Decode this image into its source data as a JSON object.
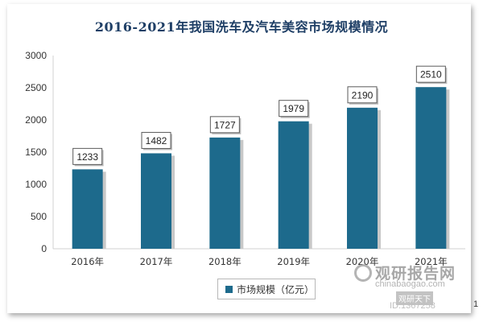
{
  "chart_data": {
    "type": "bar",
    "title": "2016-2021年我国洗车及汽车美容市场规模情况",
    "categories": [
      "2016年",
      "2017年",
      "2018年",
      "2019年",
      "2020年",
      "2021年"
    ],
    "series": [
      {
        "name": "市场规模（亿元）",
        "values": [
          1233,
          1482,
          1727,
          1979,
          2190,
          2510
        ]
      }
    ],
    "yticks": [
      "0",
      "500",
      "1000",
      "1500",
      "2000",
      "2500",
      "3000"
    ],
    "ylim": [
      0,
      3000
    ],
    "grid": false,
    "legend": "bottom",
    "colors": {
      "bar": "#1d6a8c",
      "shadow": "#c8c8c8",
      "title": "#1f3f66"
    }
  },
  "watermark": {
    "brand": "观研报告网",
    "url": "chinabaogao.com",
    "badge": "观研天下",
    "id": "ID:1367258"
  },
  "page_edge_text": "1"
}
